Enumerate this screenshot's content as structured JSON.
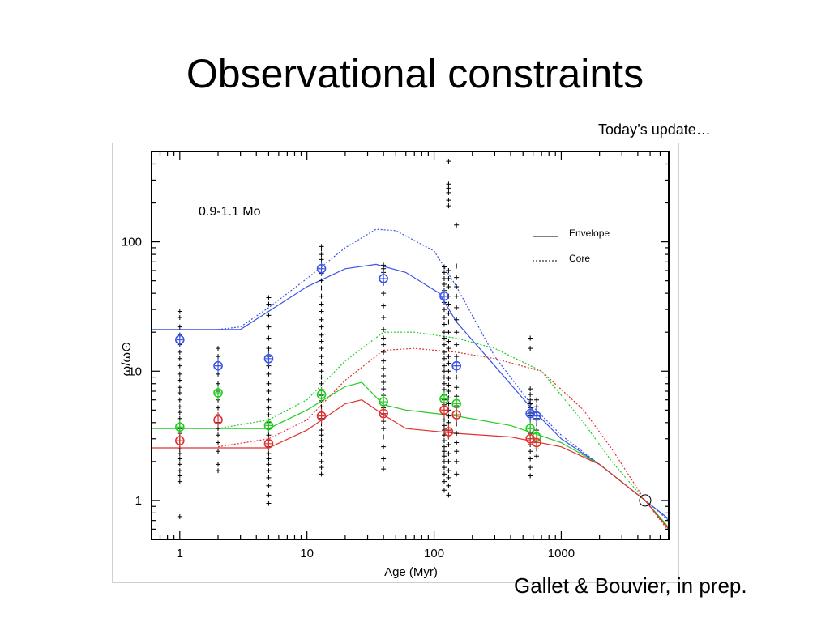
{
  "slide": {
    "title": "Observational constraints",
    "update_note": "Today’s update…",
    "credit": "Gallet & Bouvier,  in prep."
  },
  "chart_data": {
    "type": "scatter",
    "title": "",
    "annotation": "0.9-1.1 Mo",
    "xlabel": "Age (Myr)",
    "ylabel": "ω/ω⊙",
    "x_scale": "log",
    "y_scale": "log",
    "xlim": [
      0.6,
      7000
    ],
    "ylim": [
      0.5,
      500
    ],
    "x_ticks": [
      1,
      10,
      100,
      1000
    ],
    "x_tick_labels": [
      "1",
      "10",
      "100",
      "1000"
    ],
    "y_ticks": [
      1,
      10,
      100
    ],
    "y_tick_labels": [
      "1",
      "10",
      "100"
    ],
    "grid": false,
    "legend": {
      "placement": "top-right",
      "entries": [
        {
          "label": "Envelope",
          "style": "solid"
        },
        {
          "label": "Core",
          "style": "dotted"
        }
      ]
    },
    "colors": {
      "blue": "#3a55e6",
      "green": "#22cc22",
      "red": "#e03030",
      "black": "#000000"
    },
    "clusters": [
      {
        "age": 1,
        "values": [
          0.75,
          1.4,
          1.55,
          1.7,
          1.9,
          2.1,
          2.3,
          2.5,
          2.7,
          2.9,
          3.1,
          3.3,
          3.6,
          3.9,
          4.3,
          4.8,
          5.3,
          6.0,
          6.8,
          7.5,
          8.5,
          9.5,
          11,
          12.5,
          14,
          16,
          19,
          22,
          26,
          29
        ]
      },
      {
        "age": 2,
        "values": [
          1.7,
          1.9,
          2.4,
          2.8,
          3.2,
          3.6,
          4.0,
          4.6,
          5.2,
          6.0,
          7.0,
          8.0,
          9.5,
          11,
          13,
          15
        ]
      },
      {
        "age": 5,
        "values": [
          0.95,
          1.1,
          1.3,
          1.5,
          1.7,
          1.9,
          2.1,
          2.3,
          2.6,
          2.9,
          3.2,
          3.6,
          4.0,
          4.6,
          5.2,
          6.0,
          7.0,
          8.0,
          9.5,
          11,
          13,
          15,
          18,
          22,
          27,
          33,
          37
        ]
      },
      {
        "age": 13,
        "values": [
          1.6,
          1.8,
          2.0,
          2.3,
          2.6,
          2.9,
          3.2,
          3.5,
          3.9,
          4.3,
          4.8,
          5.3,
          5.9,
          6.5,
          7.2,
          8.0,
          9.0,
          10,
          11.5,
          13,
          15,
          17,
          19,
          22,
          25,
          29,
          33,
          38,
          44,
          50,
          57,
          65,
          73,
          80,
          88,
          92
        ]
      },
      {
        "age": 40,
        "values": [
          1.75,
          2.1,
          2.6,
          3.1,
          3.6,
          4.1,
          4.6,
          5.2,
          5.8,
          6.5,
          7.3,
          8.2,
          9.2,
          10.5,
          12,
          14,
          16,
          18,
          21,
          26,
          32,
          40,
          48,
          58,
          62,
          66
        ]
      },
      {
        "age": 120,
        "values": [
          1.2,
          1.4,
          1.6,
          1.8,
          2.0,
          2.2,
          2.4,
          2.6,
          2.9,
          3.2,
          3.5,
          3.8,
          4.2,
          4.6,
          5.0,
          5.5,
          6.0,
          6.6,
          7.2,
          8.0,
          9.0,
          10,
          11,
          12.5,
          14,
          16,
          18,
          20,
          23,
          26,
          30,
          34,
          38,
          42,
          47,
          52,
          58,
          64
        ]
      },
      {
        "age": 130,
        "values": [
          1.1,
          1.3,
          1.5,
          1.7,
          2.0,
          2.3,
          2.7,
          3.1,
          3.5,
          4.0,
          4.5,
          5.0,
          5.6,
          6.2,
          7.0,
          7.8,
          8.8,
          10,
          11.5,
          13,
          15,
          17,
          20,
          24,
          28,
          33,
          38,
          45,
          52,
          60,
          190,
          210,
          240,
          260,
          280,
          420
        ]
      },
      {
        "age": 150,
        "values": [
          1.6,
          2.0,
          2.4,
          2.8,
          3.3,
          3.9,
          4.6,
          5.4,
          6.4,
          7.5,
          9.0,
          11,
          13,
          16,
          20,
          25,
          31,
          38,
          45,
          53,
          65,
          135
        ]
      },
      {
        "age": 570,
        "values": [
          1.55,
          1.8,
          2.1,
          2.4,
          2.7,
          3.0,
          3.3,
          3.6,
          3.9,
          4.2,
          4.5,
          4.8,
          5.2,
          5.6,
          6.0,
          6.6,
          7.3,
          15,
          18
        ]
      },
      {
        "age": 640,
        "values": [
          2.2,
          2.5,
          2.8,
          3.1,
          3.5,
          3.9,
          4.3,
          4.8,
          5.3,
          6.0
        ]
      }
    ],
    "percentiles": {
      "blue": [
        {
          "x": 1,
          "y": 17.5
        },
        {
          "x": 2,
          "y": 11
        },
        {
          "x": 5,
          "y": 12.5
        },
        {
          "x": 13,
          "y": 62
        },
        {
          "x": 40,
          "y": 52
        },
        {
          "x": 120,
          "y": 38
        },
        {
          "x": 150,
          "y": 11
        },
        {
          "x": 570,
          "y": 4.7
        },
        {
          "x": 640,
          "y": 4.5
        }
      ],
      "green": [
        {
          "x": 1,
          "y": 3.7
        },
        {
          "x": 2,
          "y": 6.8
        },
        {
          "x": 5,
          "y": 3.8
        },
        {
          "x": 13,
          "y": 6.6
        },
        {
          "x": 40,
          "y": 5.8
        },
        {
          "x": 120,
          "y": 6.1
        },
        {
          "x": 150,
          "y": 5.6
        },
        {
          "x": 570,
          "y": 3.6
        },
        {
          "x": 640,
          "y": 3.1
        }
      ],
      "red": [
        {
          "x": 1,
          "y": 2.9
        },
        {
          "x": 2,
          "y": 4.2
        },
        {
          "x": 5,
          "y": 2.75
        },
        {
          "x": 13,
          "y": 4.5
        },
        {
          "x": 40,
          "y": 4.7
        },
        {
          "x": 120,
          "y": 5.0
        },
        {
          "x": 130,
          "y": 3.4
        },
        {
          "x": 150,
          "y": 4.6
        },
        {
          "x": 570,
          "y": 3.0
        },
        {
          "x": 640,
          "y": 2.8
        }
      ]
    },
    "sun": {
      "x": 4570,
      "y": 1
    },
    "models": [
      {
        "color": "blue",
        "component": "envelope",
        "points": [
          [
            0.6,
            21
          ],
          [
            3,
            21
          ],
          [
            5,
            29
          ],
          [
            10,
            45
          ],
          [
            20,
            62
          ],
          [
            35,
            67
          ],
          [
            60,
            58
          ],
          [
            110,
            40
          ],
          [
            150,
            24
          ],
          [
            300,
            11
          ],
          [
            600,
            5.0
          ],
          [
            1000,
            3.0
          ],
          [
            2000,
            1.9
          ],
          [
            4570,
            1.0
          ],
          [
            7000,
            0.72
          ]
        ]
      },
      {
        "color": "blue",
        "component": "core",
        "points": [
          [
            2,
            21
          ],
          [
            3,
            22
          ],
          [
            5,
            31
          ],
          [
            10,
            52
          ],
          [
            20,
            90
          ],
          [
            35,
            125
          ],
          [
            50,
            122
          ],
          [
            100,
            85
          ],
          [
            150,
            45
          ],
          [
            300,
            13
          ],
          [
            600,
            5.3
          ],
          [
            1000,
            3.2
          ],
          [
            2000,
            1.9
          ],
          [
            4570,
            1.0
          ],
          [
            7000,
            0.7
          ]
        ]
      },
      {
        "color": "green",
        "component": "envelope",
        "points": [
          [
            0.6,
            3.6
          ],
          [
            5,
            3.6
          ],
          [
            10,
            5.0
          ],
          [
            20,
            7.6
          ],
          [
            27,
            8.2
          ],
          [
            40,
            5.5
          ],
          [
            60,
            5.0
          ],
          [
            150,
            4.5
          ],
          [
            400,
            3.8
          ],
          [
            1000,
            2.8
          ],
          [
            2000,
            1.9
          ],
          [
            4570,
            1.0
          ],
          [
            7000,
            0.62
          ]
        ]
      },
      {
        "color": "green",
        "component": "core",
        "points": [
          [
            2,
            3.6
          ],
          [
            5,
            4.2
          ],
          [
            10,
            6.0
          ],
          [
            20,
            12
          ],
          [
            40,
            20
          ],
          [
            70,
            20
          ],
          [
            150,
            18
          ],
          [
            300,
            15
          ],
          [
            700,
            10
          ],
          [
            1500,
            4
          ],
          [
            2500,
            2.0
          ],
          [
            4570,
            1.0
          ],
          [
            7000,
            0.6
          ]
        ]
      },
      {
        "color": "red",
        "component": "envelope",
        "points": [
          [
            0.6,
            2.55
          ],
          [
            5,
            2.55
          ],
          [
            10,
            3.5
          ],
          [
            20,
            5.6
          ],
          [
            27,
            6.0
          ],
          [
            40,
            4.6
          ],
          [
            60,
            3.6
          ],
          [
            150,
            3.3
          ],
          [
            400,
            3.1
          ],
          [
            1000,
            2.6
          ],
          [
            2000,
            1.9
          ],
          [
            4570,
            1.0
          ],
          [
            7000,
            0.6
          ]
        ]
      },
      {
        "color": "red",
        "component": "core",
        "points": [
          [
            2,
            2.6
          ],
          [
            5,
            3.0
          ],
          [
            10,
            4.2
          ],
          [
            20,
            8.5
          ],
          [
            40,
            14.5
          ],
          [
            70,
            15
          ],
          [
            150,
            14
          ],
          [
            300,
            12.5
          ],
          [
            700,
            10
          ],
          [
            1500,
            5
          ],
          [
            2500,
            2.5
          ],
          [
            4570,
            1.0
          ],
          [
            7000,
            0.58
          ]
        ]
      }
    ]
  }
}
